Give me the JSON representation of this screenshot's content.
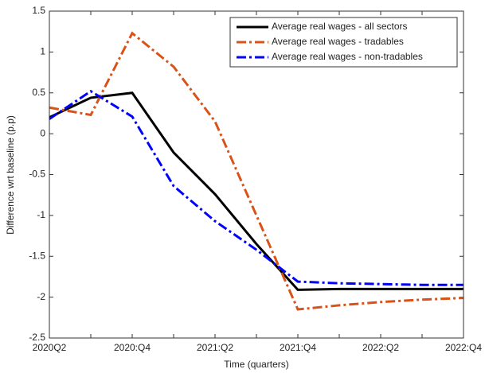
{
  "chart_data": {
    "type": "line",
    "xlabel": "Time (quarters)",
    "ylabel": "Difference wrt baseline (p.p)",
    "categories": [
      "2020Q2",
      null,
      "2020:Q4",
      null,
      "2021:Q2",
      null,
      "2021:Q4",
      null,
      "2022:Q2",
      null,
      "2022:Q4"
    ],
    "series": [
      {
        "name": "Average real wages - all sectors",
        "color": "#000000",
        "line_style": "solid",
        "values": [
          0.2,
          0.44,
          0.5,
          -0.23,
          -0.74,
          -1.35,
          -1.91,
          -1.9,
          -1.9,
          -1.9,
          -1.9
        ]
      },
      {
        "name": "Average real wages - tradables",
        "color": "#d95319",
        "line_style": "dashdot",
        "values": [
          0.32,
          0.23,
          1.23,
          0.82,
          0.15,
          -1.0,
          -2.15,
          -2.1,
          -2.06,
          -2.03,
          -2.01
        ]
      },
      {
        "name": "Average real wages - non-tradables",
        "color": "#0000ff",
        "line_style": "dashdot",
        "values": [
          0.18,
          0.52,
          0.21,
          -0.64,
          -1.07,
          -1.42,
          -1.81,
          -1.83,
          -1.84,
          -1.85,
          -1.85
        ]
      }
    ],
    "ylim": [
      -2.5,
      1.5
    ],
    "yticks": [
      1.5,
      1,
      0.5,
      0,
      -0.5,
      -1,
      -1.5,
      -2,
      -2.5
    ],
    "grid": false,
    "legend_position": "top-right"
  }
}
